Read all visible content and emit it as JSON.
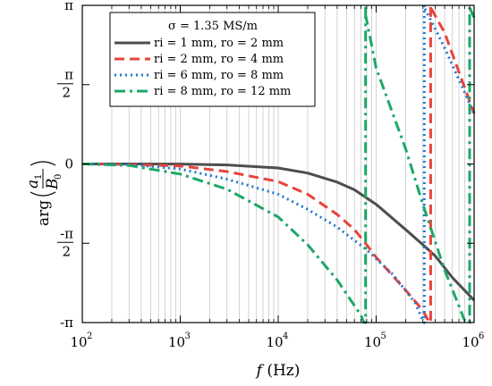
{
  "chart_data": {
    "type": "line",
    "xlabel": "f (Hz)",
    "ylabel": "arg(a1/B0)",
    "xscale": "log",
    "xlim": [
      100,
      1000000
    ],
    "ylim": [
      -3.14159,
      3.14159
    ],
    "grid": "vertical minor lines on log x axis",
    "x_ticks": [
      {
        "base": "10",
        "exp": "2"
      },
      {
        "base": "10",
        "exp": "3"
      },
      {
        "base": "10",
        "exp": "4"
      },
      {
        "base": "10",
        "exp": "5"
      },
      {
        "base": "10",
        "exp": "6"
      }
    ],
    "y_ticks": [
      "π",
      "π/2",
      "0",
      "-π/2",
      "-π"
    ],
    "legend": {
      "placement": "top-left",
      "header": "σ = 1.35 MS/m",
      "entries": [
        "ri = 1 mm, ro = 2 mm",
        "ri = 2 mm, ro = 4 mm",
        "ri = 6 mm, ro = 8 mm",
        "ri = 8 mm, ro = 12 mm"
      ]
    },
    "series": [
      {
        "name": "ri = 1 mm, ro = 2 mm",
        "color": "#4d4d4d",
        "dash": "solid",
        "x": [
          100,
          300,
          1000,
          3000,
          10000,
          20000,
          40000,
          60000,
          100000,
          200000,
          300000,
          400000,
          600000,
          1000000
        ],
        "y": [
          0,
          0,
          -0.003,
          -0.02,
          -0.08,
          -0.18,
          -0.36,
          -0.51,
          -0.8,
          -1.3,
          -1.6,
          -1.82,
          -2.25,
          -2.7
        ]
      },
      {
        "name": "ri = 2 mm, ro = 4 mm",
        "color": "#e8433c",
        "dash": "dashed",
        "x": [
          100,
          300,
          1000,
          3000,
          10000,
          20000,
          40000,
          60000,
          80000,
          100000,
          200000,
          300000,
          340000,
          360000,
          500000,
          1000000
        ],
        "y": [
          0,
          -0.01,
          -0.04,
          -0.15,
          -0.35,
          -0.6,
          -1.0,
          -1.3,
          -1.6,
          -1.85,
          -2.5,
          -2.9,
          -3.1,
          3.1,
          2.6,
          1.0
        ]
      },
      {
        "name": "ri = 6 mm, ro = 8 mm",
        "color": "#1f78d0",
        "dash": "dotted",
        "x": [
          100,
          300,
          1000,
          3000,
          10000,
          20000,
          40000,
          80000,
          150000,
          250000,
          300000,
          310000,
          330000,
          500000,
          1000000
        ],
        "y": [
          0,
          -0.01,
          -0.1,
          -0.3,
          -0.6,
          -0.9,
          -1.25,
          -1.7,
          -2.2,
          -2.75,
          -3.1,
          3.1,
          3.0,
          2.3,
          1.0
        ]
      },
      {
        "name": "ri = 8 mm, ro = 12 mm",
        "color": "#1aa867",
        "dash": "dash-dot",
        "x": [
          100,
          300,
          1000,
          3000,
          10000,
          20000,
          40000,
          70000,
          75000,
          78000,
          100000,
          200000,
          300000,
          500000,
          800000,
          880000,
          900000,
          1000000
        ],
        "y": [
          0,
          -0.03,
          -0.2,
          -0.5,
          -1.05,
          -1.6,
          -2.3,
          -3.0,
          -3.14,
          2.95,
          1.9,
          0.3,
          -0.8,
          -2.1,
          -3.1,
          -3.14,
          3.1,
          2.9
        ]
      }
    ]
  }
}
